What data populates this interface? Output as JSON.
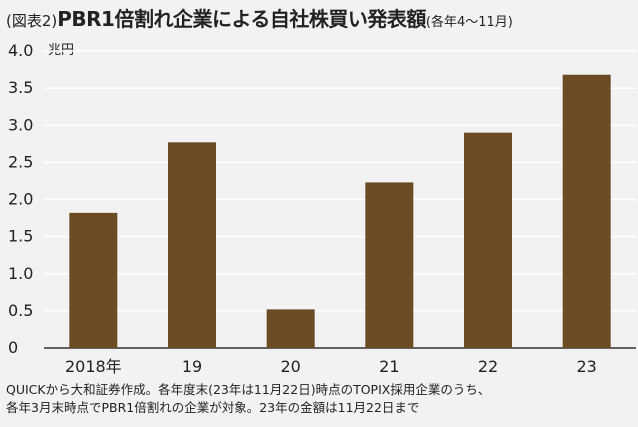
{
  "title": {
    "prefix": "(図表2)",
    "main": "PBR1倍割れ企業による自社株買い発表額",
    "suffix": "(各年4〜11月)"
  },
  "unit": "兆円",
  "notes": [
    "QUICKから大和証券作成。各年度末(23年は11月22日)時点のTOPIX採用企業のうち、",
    "各年3月末時点でPBR1倍割れの企業が対象。23年の金額は11月22日まで"
  ],
  "colors": {
    "bar": "#6b4b22",
    "axis": "#333333",
    "grid": "#ffffff",
    "background": "#f2f2f2"
  },
  "chart_data": {
    "type": "bar",
    "categories": [
      "2018年",
      "19",
      "20",
      "21",
      "22",
      "23"
    ],
    "values": [
      1.82,
      2.77,
      0.52,
      2.23,
      2.9,
      3.68
    ],
    "ylim": [
      0,
      4.0
    ],
    "yticks": [
      0,
      0.5,
      1.0,
      1.5,
      2.0,
      2.5,
      3.0,
      3.5,
      4.0
    ],
    "ytick_labels": [
      "0",
      "0.5",
      "1.0",
      "1.5",
      "2.0",
      "2.5",
      "3.0",
      "3.5",
      "4.0"
    ],
    "grid": true,
    "legend": false
  }
}
